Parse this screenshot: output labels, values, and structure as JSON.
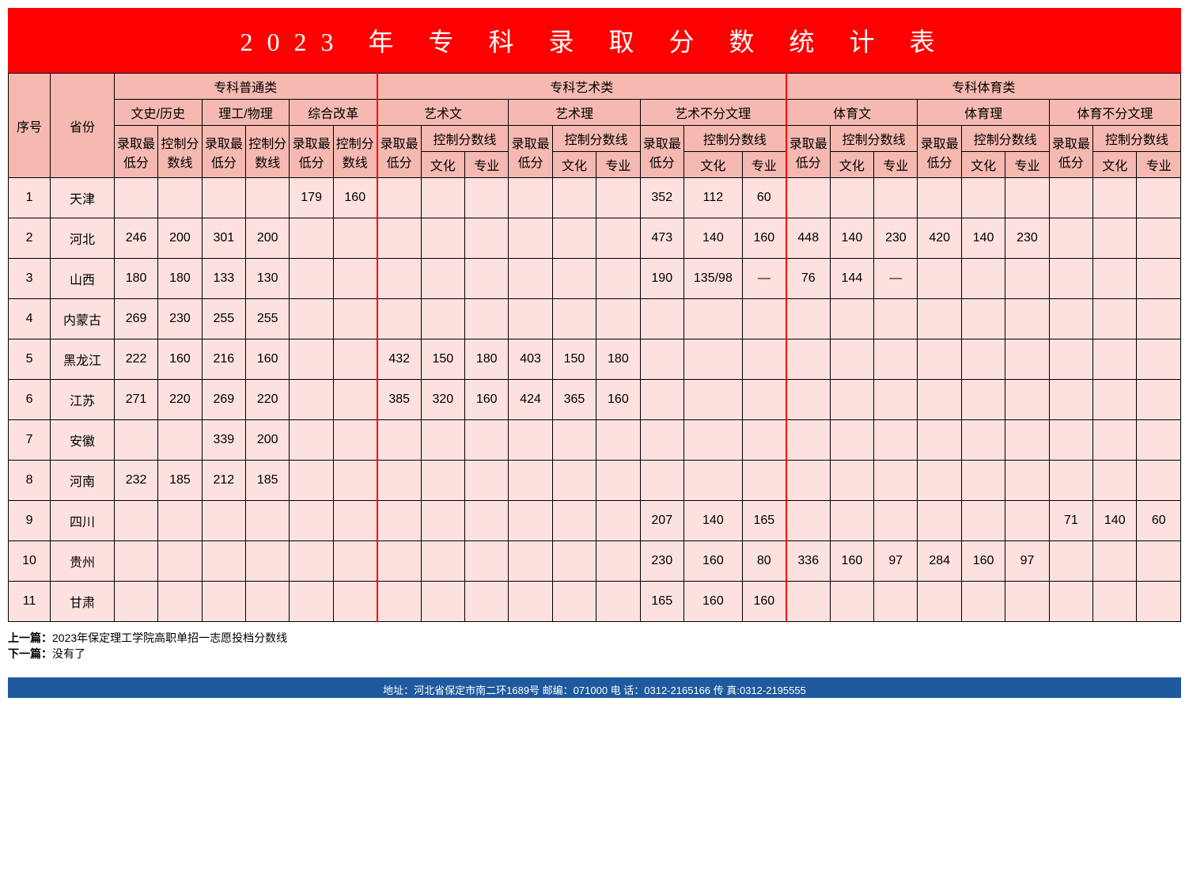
{
  "title": "2023 年 专 科 录 取 分 数 统 计 表",
  "headers": {
    "idx": "序号",
    "province": "省份",
    "group_general": "专科普通类",
    "group_art": "专科艺术类",
    "group_sport": "专科体育类",
    "sub_wenshi": "文史/历史",
    "sub_ligong": "理工/物理",
    "sub_zonghe": "综合改革",
    "sub_art_wen": "艺术文",
    "sub_art_li": "艺术理",
    "sub_art_both": "艺术不分文理",
    "sub_sport_wen": "体育文",
    "sub_sport_li": "体育理",
    "sub_sport_both": "体育不分文理",
    "luqu": "录取最低分",
    "kongzhi": "控制分数线",
    "wenhua": "文化",
    "zhuanye": "专业"
  },
  "rows": [
    {
      "idx": "1",
      "prov": "天津",
      "c": [
        "",
        "",
        "",
        "",
        "179",
        "160",
        "",
        "",
        "",
        "",
        "",
        "",
        "352",
        "112",
        "60",
        "",
        "",
        "",
        "",
        "",
        "",
        "",
        "",
        ""
      ]
    },
    {
      "idx": "2",
      "prov": "河北",
      "c": [
        "246",
        "200",
        "301",
        "200",
        "",
        "",
        "",
        "",
        "",
        "",
        "",
        "",
        "473",
        "140",
        "160",
        "448",
        "140",
        "230",
        "420",
        "140",
        "230",
        "",
        "",
        ""
      ]
    },
    {
      "idx": "3",
      "prov": "山西",
      "c": [
        "180",
        "180",
        "133",
        "130",
        "",
        "",
        "",
        "",
        "",
        "",
        "",
        "",
        "190",
        "135/98",
        "—",
        "76",
        "144",
        "—",
        "",
        "",
        "",
        "",
        "",
        ""
      ]
    },
    {
      "idx": "4",
      "prov": "内蒙古",
      "c": [
        "269",
        "230",
        "255",
        "255",
        "",
        "",
        "",
        "",
        "",
        "",
        "",
        "",
        "",
        "",
        "",
        "",
        "",
        "",
        "",
        "",
        "",
        "",
        "",
        ""
      ]
    },
    {
      "idx": "5",
      "prov": "黑龙江",
      "c": [
        "222",
        "160",
        "216",
        "160",
        "",
        "",
        "432",
        "150",
        "180",
        "403",
        "150",
        "180",
        "",
        "",
        "",
        "",
        "",
        "",
        "",
        "",
        "",
        "",
        "",
        ""
      ]
    },
    {
      "idx": "6",
      "prov": "江苏",
      "c": [
        "271",
        "220",
        "269",
        "220",
        "",
        "",
        "385",
        "320",
        "160",
        "424",
        "365",
        "160",
        "",
        "",
        "",
        "",
        "",
        "",
        "",
        "",
        "",
        "",
        "",
        ""
      ]
    },
    {
      "idx": "7",
      "prov": "安徽",
      "c": [
        "",
        "",
        "339",
        "200",
        "",
        "",
        "",
        "",
        "",
        "",
        "",
        "",
        "",
        "",
        "",
        "",
        "",
        "",
        "",
        "",
        "",
        "",
        "",
        ""
      ]
    },
    {
      "idx": "8",
      "prov": "河南",
      "c": [
        "232",
        "185",
        "212",
        "185",
        "",
        "",
        "",
        "",
        "",
        "",
        "",
        "",
        "",
        "",
        "",
        "",
        "",
        "",
        "",
        "",
        "",
        "",
        "",
        ""
      ]
    },
    {
      "idx": "9",
      "prov": "四川",
      "c": [
        "",
        "",
        "",
        "",
        "",
        "",
        "",
        "",
        "",
        "",
        "",
        "",
        "207",
        "140",
        "165",
        "",
        "",
        "",
        "",
        "",
        "",
        "71",
        "140",
        "60"
      ]
    },
    {
      "idx": "10",
      "prov": "贵州",
      "c": [
        "",
        "",
        "",
        "",
        "",
        "",
        "",
        "",
        "",
        "",
        "",
        "",
        "230",
        "160",
        "80",
        "336",
        "160",
        "97",
        "284",
        "160",
        "97",
        "",
        "",
        ""
      ]
    },
    {
      "idx": "11",
      "prov": "甘肃",
      "c": [
        "",
        "",
        "",
        "",
        "",
        "",
        "",
        "",
        "",
        "",
        "",
        "",
        "165",
        "160",
        "160",
        "",
        "",
        "",
        "",
        "",
        "",
        "",
        "",
        ""
      ]
    }
  ],
  "nav": {
    "prev_label": "上一篇：",
    "prev_text": "2023年保定理工学院高职单招一志愿投档分数线",
    "next_label": "下一篇：",
    "next_text": "没有了"
  },
  "footer": "地址：河北省保定市南二环1689号 邮编：071000 电 话：0312-2165166 传 真:0312-2195555",
  "colors": {
    "title_bg": "#ff0000",
    "title_fg": "#ffffff",
    "header_bg": "#f5b9b1",
    "cell_bg": "#fce1de",
    "border": "#000000",
    "art_border": "#ff0000",
    "footer_bg": "#1f5a9e"
  }
}
